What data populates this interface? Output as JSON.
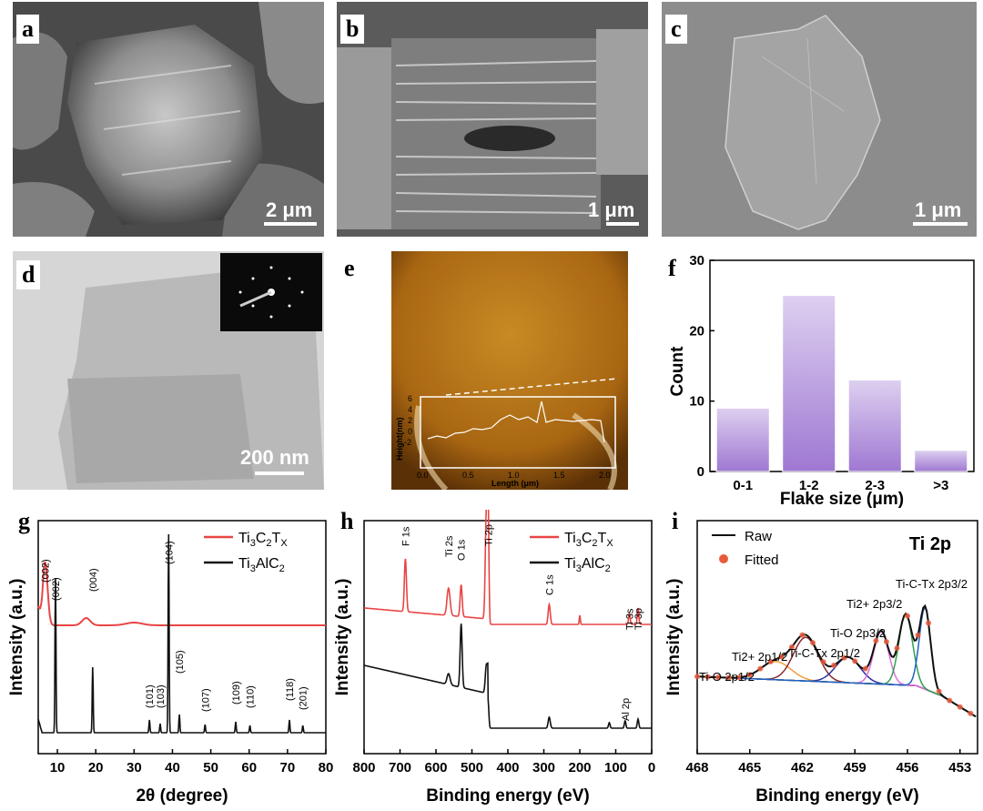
{
  "panels": {
    "a": {
      "label": "a",
      "scalebar": "2 μm"
    },
    "b": {
      "label": "b",
      "scalebar": "1 μm"
    },
    "c": {
      "label": "c",
      "scalebar": "1 μm"
    },
    "d": {
      "label": "d",
      "scalebar": "200 nm"
    },
    "e": {
      "label": "e",
      "inset_ylabel": "Height(nm)",
      "inset_xlabel": "Length (μm)",
      "inset_yticks": [
        "6",
        "4",
        "2",
        "0",
        "-2"
      ],
      "inset_xticks": [
        "0.0",
        "0.5",
        "1.0",
        "1.5",
        "2.0"
      ]
    },
    "f": {
      "label": "f"
    },
    "g": {
      "label": "g"
    },
    "h": {
      "label": "h"
    },
    "i": {
      "label": "i"
    }
  },
  "chart_data": [
    {
      "panel": "f",
      "type": "bar",
      "categories": [
        "0-1",
        "1-2",
        "2-3",
        ">3"
      ],
      "values": [
        9,
        25,
        13,
        3
      ],
      "xlabel": "Flake size (μm)",
      "ylabel": "Count",
      "ylim": [
        0,
        30
      ],
      "yticks": [
        "0",
        "10",
        "20",
        "30"
      ],
      "colors": {
        "bar_top": "#ddd0f0",
        "bar_bottom": "#9f78d2"
      }
    },
    {
      "panel": "g",
      "type": "line",
      "xlabel": "2θ (degree)",
      "ylabel": "Intensity (a.u.)",
      "xlim": [
        5,
        80
      ],
      "xticks": [
        "10",
        "20",
        "30",
        "40",
        "50",
        "60",
        "70",
        "80"
      ],
      "legend": [
        {
          "name": "Ti3C2TX",
          "color": "#e84545"
        },
        {
          "name": "Ti3AlC2",
          "color": "#111111"
        }
      ],
      "series": [
        {
          "name": "Ti3C2TX",
          "color": "#e84545",
          "peaks": [
            {
              "x": 6.8,
              "label": "(002)"
            }
          ]
        },
        {
          "name": "Ti3AlC2",
          "color": "#111111",
          "peaks": [
            {
              "x": 9.5,
              "label": "(002)"
            },
            {
              "x": 19.2,
              "label": "(004)"
            },
            {
              "x": 34.0,
              "label": "(101)"
            },
            {
              "x": 36.8,
              "label": "(103)"
            },
            {
              "x": 39.0,
              "label": "(104)"
            },
            {
              "x": 41.8,
              "label": "(105)"
            },
            {
              "x": 48.5,
              "label": "(107)"
            },
            {
              "x": 56.5,
              "label": "(109)"
            },
            {
              "x": 60.2,
              "label": "(110)"
            },
            {
              "x": 70.5,
              "label": "(118)"
            },
            {
              "x": 74.0,
              "label": "(201)"
            }
          ]
        }
      ]
    },
    {
      "panel": "h",
      "type": "line",
      "xlabel": "Binding energy (eV)",
      "ylabel": "Intensity (a.u.)",
      "xlim": [
        800,
        0
      ],
      "xticks": [
        "800",
        "700",
        "600",
        "500",
        "400",
        "300",
        "200",
        "100",
        "0"
      ],
      "legend": [
        {
          "name": "Ti3C2TX",
          "color": "#e84545"
        },
        {
          "name": "Ti3AlC2",
          "color": "#111111"
        }
      ],
      "peaks": [
        {
          "x": 685,
          "label": "F 1s"
        },
        {
          "x": 565,
          "label": "Ti 2s"
        },
        {
          "x": 530,
          "label": "O 1s"
        },
        {
          "x": 455,
          "label": "Ti 2p"
        },
        {
          "x": 285,
          "label": "C 1s"
        },
        {
          "x": 62,
          "label": "Ti 3s"
        },
        {
          "x": 38,
          "label": "Ti 3p"
        },
        {
          "x": 74,
          "label": "Al 2p"
        }
      ]
    },
    {
      "panel": "i",
      "type": "line",
      "title": "Ti 2p",
      "xlabel": "Binding energy (eV)",
      "ylabel": "Intensity (a.u.)",
      "xlim": [
        468,
        452
      ],
      "xticks": [
        "468",
        "465",
        "462",
        "459",
        "456",
        "453"
      ],
      "legend": [
        {
          "name": "Raw",
          "color": "#111111"
        },
        {
          "name": "Fitted",
          "color": "#e85a3c"
        }
      ],
      "components": [
        {
          "name": "Ti-O 2p1/2",
          "center": 463.5,
          "color": "#f0a040"
        },
        {
          "name": "Ti2+ 2p1/2",
          "center": 461.8,
          "color": "#8b2a2a"
        },
        {
          "name": "Ti-C-Tx 2p1/2",
          "center": 459.4,
          "color": "#3030a0"
        },
        {
          "name": "Ti-O 2p3/2",
          "center": 457.5,
          "color": "#e070e0"
        },
        {
          "name": "Ti2+ 2p3/2",
          "center": 456.1,
          "color": "#30a050"
        },
        {
          "name": "Ti-C-Tx 2p3/2",
          "center": 455.0,
          "color": "#2060c0"
        }
      ]
    }
  ]
}
